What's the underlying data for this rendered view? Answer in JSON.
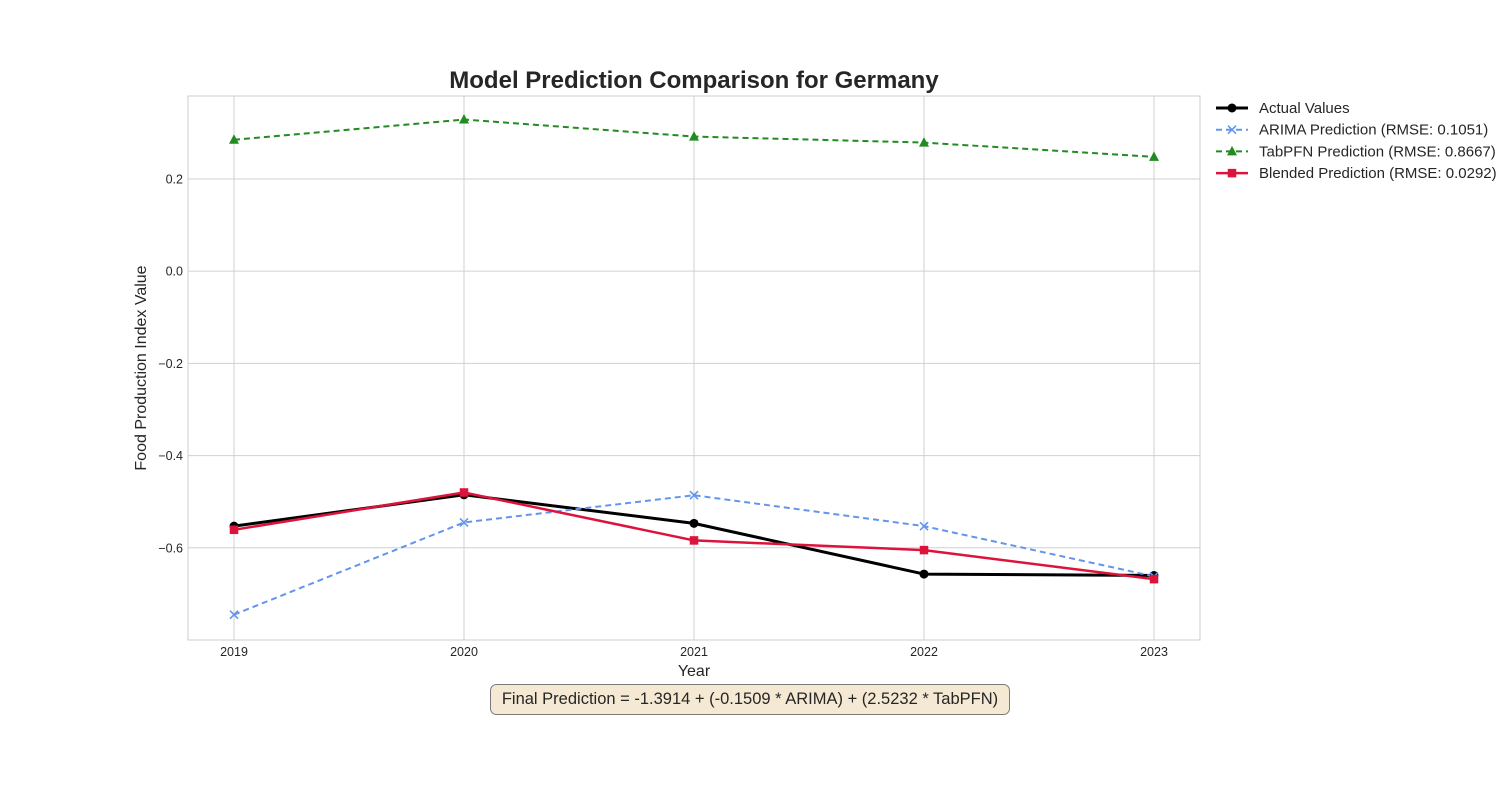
{
  "chart_data": {
    "type": "line",
    "title": "Model Prediction Comparison for Germany",
    "xlabel": "Year",
    "ylabel": "Food Production Index Value",
    "x": [
      "2019",
      "2020",
      "2021",
      "2022",
      "2023"
    ],
    "xlim": [
      2018.8,
      2023.2
    ],
    "ylim": [
      -0.8,
      0.38
    ],
    "yticks": [
      0.2,
      0.0,
      -0.2,
      -0.4,
      -0.6
    ],
    "ytick_labels": [
      "0.2",
      "0.0",
      "−0.2",
      "−0.4",
      "−0.6"
    ],
    "grid": true,
    "legend_placement": "outside top-right",
    "series": [
      {
        "name": "Actual Values",
        "values": [
          -0.553,
          -0.485,
          -0.547,
          -0.657,
          -0.66
        ],
        "color": "#000000",
        "linestyle": "solid",
        "marker": "circle",
        "linewidth": 3
      },
      {
        "name": "ARIMA Prediction (RMSE: 0.1051)",
        "values": [
          -0.745,
          -0.545,
          -0.486,
          -0.553,
          -0.662
        ],
        "color": "#6495ED",
        "linestyle": "dashed",
        "marker": "x",
        "linewidth": 2
      },
      {
        "name": "TabPFN Prediction (RMSE: 0.8667)",
        "values": [
          0.285,
          0.329,
          0.292,
          0.279,
          0.248
        ],
        "color": "#228B22",
        "linestyle": "dashed",
        "marker": "triangle",
        "linewidth": 2
      },
      {
        "name": "Blended Prediction (RMSE: 0.0292)",
        "values": [
          -0.561,
          -0.48,
          -0.584,
          -0.605,
          -0.668
        ],
        "color": "#DC143C",
        "linestyle": "solid",
        "marker": "square",
        "linewidth": 2.5
      }
    ],
    "annotation": "Final Prediction = -1.3914 + (-0.1509 * ARIMA) + (2.5232 * TabPFN)"
  },
  "colors": {
    "grid": "#d0d0d0",
    "frame": "#cccccc",
    "annotation_bg": "#f6e9d4",
    "annotation_border": "#7a7a7a"
  }
}
